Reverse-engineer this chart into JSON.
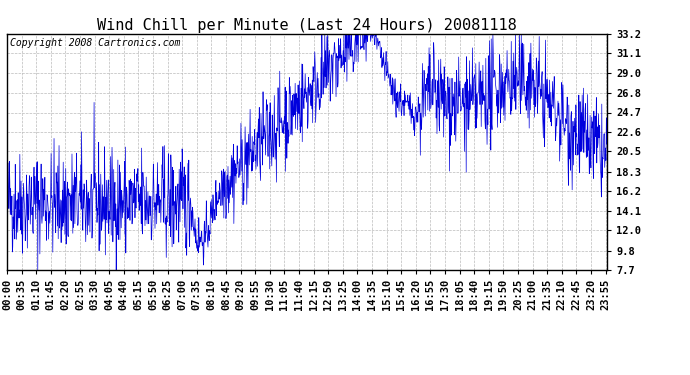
{
  "title": "Wind Chill per Minute (Last 24 Hours) 20081118",
  "copyright": "Copyright 2008 Cartronics.com",
  "line_color": "#0000dd",
  "bg_color": "#ffffff",
  "plot_bg_color": "#ffffff",
  "grid_color": "#bbbbbb",
  "yticks": [
    7.7,
    9.8,
    12.0,
    14.1,
    16.2,
    18.3,
    20.5,
    22.6,
    24.7,
    26.8,
    29.0,
    31.1,
    33.2
  ],
  "ymin": 7.7,
  "ymax": 33.2,
  "tick_label_fontsize": 7.5,
  "title_fontsize": 11,
  "copyright_fontsize": 7,
  "xtick_interval": 35
}
